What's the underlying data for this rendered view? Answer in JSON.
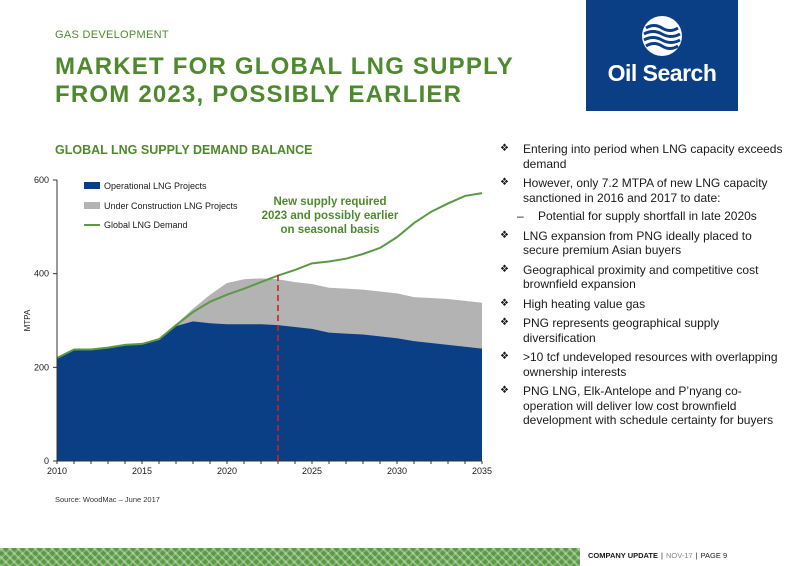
{
  "header": {
    "section_label": "GAS DEVELOPMENT",
    "title_line1": "MARKET FOR GLOBAL LNG SUPPLY",
    "title_line2": "FROM 2023, POSSIBLY EARLIER"
  },
  "logo": {
    "text": "Oil Search",
    "brand_color": "#0a3f86",
    "icon": "wave-emblem-icon"
  },
  "chart_title": "GLOBAL LNG SUPPLY DEMAND BALANCE",
  "chart_data": {
    "type": "area",
    "title": "GLOBAL LNG SUPPLY DEMAND BALANCE",
    "ylabel": "MTPA",
    "xlabel": "",
    "xlim": [
      2010,
      2035
    ],
    "ylim": [
      0,
      600
    ],
    "x_ticks": [
      "2010",
      "2015",
      "2020",
      "2025",
      "2030",
      "2035"
    ],
    "y_ticks": [
      "0",
      "200",
      "400",
      "600"
    ],
    "grid": false,
    "legend_position": "top-left",
    "x": [
      2010,
      2011,
      2012,
      2013,
      2014,
      2015,
      2016,
      2017,
      2018,
      2019,
      2020,
      2021,
      2022,
      2023,
      2024,
      2025,
      2026,
      2027,
      2028,
      2029,
      2030,
      2031,
      2032,
      2033,
      2034,
      2035
    ],
    "series": [
      {
        "name": "Operational LNG Projects",
        "color": "#0a3f86",
        "values": [
          220,
          238,
          238,
          242,
          248,
          250,
          262,
          288,
          298,
          294,
          292,
          292,
          292,
          290,
          286,
          282,
          274,
          272,
          270,
          266,
          262,
          256,
          252,
          248,
          244,
          240
        ]
      },
      {
        "name": "Under Construction LNG Projects",
        "color": "#b3b3b3",
        "stacked_total": true,
        "values": [
          220,
          238,
          238,
          242,
          248,
          250,
          262,
          292,
          325,
          355,
          380,
          388,
          390,
          388,
          382,
          378,
          370,
          368,
          366,
          362,
          358,
          350,
          348,
          346,
          342,
          338
        ]
      },
      {
        "name": "Global LNG Demand",
        "color": "#5a9a44",
        "kind": "line",
        "values": [
          220,
          238,
          238,
          242,
          248,
          250,
          260,
          290,
          318,
          340,
          355,
          368,
          382,
          396,
          408,
          422,
          426,
          432,
          442,
          455,
          478,
          508,
          532,
          550,
          566,
          572
        ]
      }
    ],
    "annotation": {
      "text_line1": "New supply required",
      "text_line2": "2023 and possibly earlier",
      "text_line3": "on seasonal basis",
      "x": 2023,
      "color": "#cc2222",
      "text_color": "#4e8a2d"
    }
  },
  "source": "Source: WoodMac – June 2017",
  "bullets": [
    {
      "text": "Entering into period when LNG capacity exceeds demand"
    },
    {
      "text": "However, only 7.2 MTPA of new LNG capacity sanctioned in 2016 and 2017 to date:"
    },
    {
      "text": "Potential for supply shortfall in late 2020s",
      "sub": true
    },
    {
      "text": "LNG expansion from PNG ideally placed to secure premium Asian buyers"
    },
    {
      "text": "Geographical proximity and competitive cost brownfield expansion"
    },
    {
      "text": "High heating value gas"
    },
    {
      "text": "PNG represents geographical  supply diversification"
    },
    {
      "text": ">10 tcf undeveloped resources with overlapping ownership interests"
    },
    {
      "text": "PNG LNG, Elk-Antelope and P’nyang co-operation will deliver low cost brownfield development with schedule certainty for buyers"
    }
  ],
  "bullet_marks": {
    "main": "❖",
    "sub": "–"
  },
  "footer": {
    "company_update": "COMPANY UPDATE",
    "date": "NOV-17",
    "page": "PAGE 9",
    "band_color": "#5a9a44"
  }
}
